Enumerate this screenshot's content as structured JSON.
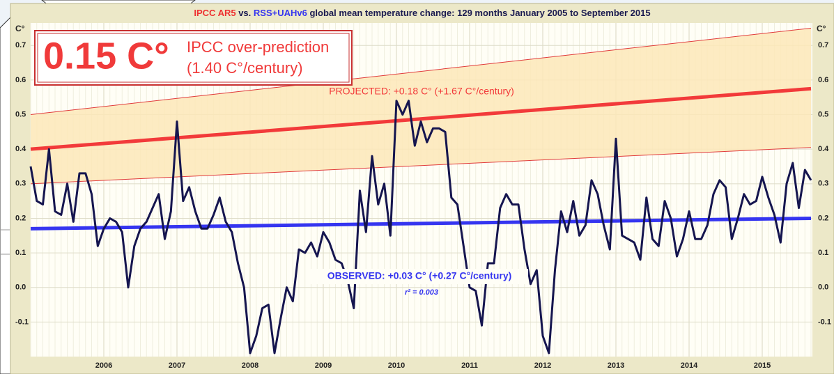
{
  "chart_data": {
    "type": "line",
    "title": [
      "IPCC AR5",
      " vs. ",
      "RSS+UAHv6",
      " global mean temperature change: 129 months January 2005 to September 2015"
    ],
    "y_axis_label": "C°",
    "headline": {
      "value_text": "0.15 C°",
      "line1": "IPCC over-prediction",
      "line2": "(1.40 C°/century)"
    },
    "categories": [
      null,
      null,
      null,
      null,
      null,
      null,
      null,
      null,
      null,
      null,
      null,
      null,
      "2006",
      null,
      null,
      null,
      null,
      null,
      null,
      null,
      null,
      null,
      null,
      null,
      "2007",
      null,
      null,
      null,
      null,
      null,
      null,
      null,
      null,
      null,
      null,
      null,
      "2008",
      null,
      null,
      null,
      null,
      null,
      null,
      null,
      null,
      null,
      null,
      null,
      "2009",
      null,
      null,
      null,
      null,
      null,
      null,
      null,
      null,
      null,
      null,
      null,
      "2010",
      null,
      null,
      null,
      null,
      null,
      null,
      null,
      null,
      null,
      null,
      null,
      "2011",
      null,
      null,
      null,
      null,
      null,
      null,
      null,
      null,
      null,
      null,
      null,
      "2012",
      null,
      null,
      null,
      null,
      null,
      null,
      null,
      null,
      null,
      null,
      null,
      "2013",
      null,
      null,
      null,
      null,
      null,
      null,
      null,
      null,
      null,
      null,
      null,
      "2014",
      null,
      null,
      null,
      null,
      null,
      null,
      null,
      null,
      null,
      null,
      null,
      "2015",
      null,
      null,
      null,
      null,
      null,
      null,
      null,
      null
    ],
    "series": [
      {
        "name": "RSS+UAHv6",
        "color": "#15154f",
        "values": [
          0.35,
          0.25,
          0.24,
          0.4,
          0.22,
          0.21,
          0.3,
          0.19,
          0.33,
          0.33,
          0.27,
          0.12,
          0.17,
          0.2,
          0.19,
          0.16,
          0.0,
          0.12,
          0.17,
          0.19,
          0.23,
          0.27,
          0.14,
          0.22,
          0.48,
          0.25,
          0.29,
          0.22,
          0.17,
          0.17,
          0.21,
          0.26,
          0.19,
          0.16,
          0.07,
          0.0,
          -0.19,
          -0.14,
          -0.06,
          -0.05,
          -0.19,
          -0.09,
          0.0,
          -0.04,
          0.11,
          0.1,
          0.13,
          0.09,
          0.16,
          0.13,
          0.08,
          0.07,
          0.02,
          -0.06,
          0.28,
          0.16,
          0.38,
          0.24,
          0.3,
          0.15,
          0.54,
          0.5,
          0.54,
          0.41,
          0.48,
          0.42,
          0.46,
          0.46,
          0.45,
          0.26,
          0.24,
          0.12,
          0.0,
          -0.01,
          -0.11,
          0.07,
          0.07,
          0.23,
          0.27,
          0.24,
          0.24,
          0.11,
          0.01,
          0.05,
          -0.14,
          -0.19,
          0.05,
          0.22,
          0.16,
          0.25,
          0.15,
          0.18,
          0.31,
          0.27,
          0.18,
          0.11,
          0.43,
          0.15,
          0.14,
          0.13,
          0.08,
          0.26,
          0.14,
          0.12,
          0.25,
          0.2,
          0.09,
          0.14,
          0.22,
          0.14,
          0.14,
          0.18,
          0.27,
          0.31,
          0.29,
          0.14,
          0.2,
          0.27,
          0.24,
          0.25,
          0.32,
          0.26,
          0.21,
          0.13,
          0.3,
          0.36,
          0.23,
          0.34,
          0.31
        ]
      }
    ],
    "projection_band": {
      "color": "#fde7b9",
      "edge_color": "#e03a3a",
      "upper": [
        0.5,
        0.75
      ],
      "lower": [
        0.3,
        0.405
      ]
    },
    "projected_trend": {
      "label": "PROJECTED: +0.18 C° (+1.67 C°/century)",
      "color": "#f23a3a",
      "values": [
        0.4,
        0.575
      ]
    },
    "observed_trend": {
      "label": "OBSERVED: +0.03 C° (+0.27 C°/century)",
      "r2_label": "r² = 0.003",
      "color": "#3535f0",
      "values": [
        0.17,
        0.2
      ]
    },
    "ylim": [
      -0.2,
      0.765
    ],
    "yticks": [
      -0.1,
      {
        "value": 0,
        "label": "0.0"
      },
      0.1,
      0.2,
      0.3,
      0.4,
      0.5,
      0.6,
      0.7
    ],
    "grid": true
  }
}
